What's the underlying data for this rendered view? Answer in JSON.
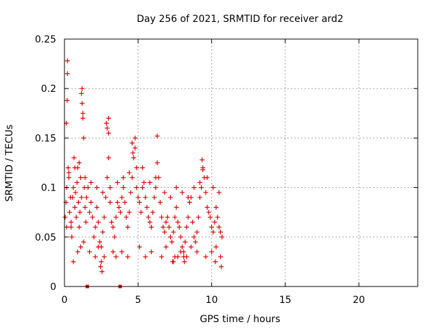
{
  "chart_data": {
    "type": "scatter",
    "title": "Day 256 of 2021, SRMTID for receiver ard2",
    "xlabel": "GPS time / hours",
    "ylabel": "SRMTID / TECUs",
    "xlim": [
      0,
      24
    ],
    "ylim": [
      0,
      0.25
    ],
    "xticks": [
      0,
      5,
      10,
      15,
      20
    ],
    "xtick_labels": [
      "0",
      "5",
      "10",
      "15",
      "20"
    ],
    "yticks": [
      0,
      0.05,
      0.1,
      0.15,
      0.2,
      0.25
    ],
    "ytick_labels": [
      "0",
      "0.05",
      "0.1",
      "0.15",
      "0.2",
      "0.25"
    ],
    "grid": true,
    "marker": "+",
    "color": "#e00000",
    "data_gaps_at_zero": [
      1.55,
      3.78
    ],
    "series": [
      {
        "name": "SRMTID",
        "x": [
          0.05,
          0.1,
          0.15,
          0.15,
          0.2,
          0.2,
          0.25,
          0.3,
          0.35,
          0.4,
          0.45,
          0.5,
          0.55,
          0.6,
          0.65,
          0.7,
          0.75,
          0.8,
          0.85,
          0.9,
          0.95,
          1.0,
          1.05,
          1.1,
          1.15,
          1.2,
          1.25,
          1.3,
          1.35,
          1.4,
          1.45,
          1.5,
          1.6,
          1.7,
          1.8,
          1.9,
          2.0,
          2.1,
          2.2,
          2.3,
          2.4,
          2.5,
          2.6,
          2.7,
          2.8,
          2.9,
          3.0,
          3.0,
          3.0,
          3.1,
          3.2,
          3.3,
          3.4,
          3.5,
          3.6,
          3.7,
          3.8,
          3.9,
          4.0,
          4.1,
          4.2,
          4.3,
          4.4,
          4.5,
          4.6,
          4.7,
          4.8,
          4.8,
          4.9,
          5.0,
          5.1,
          5.2,
          5.3,
          5.4,
          5.5,
          5.6,
          5.7,
          5.8,
          5.9,
          6.0,
          6.1,
          6.2,
          6.3,
          6.4,
          6.5,
          6.6,
          6.7,
          6.8,
          6.9,
          7.0,
          7.1,
          7.2,
          7.3,
          7.4,
          7.5,
          7.6,
          7.7,
          7.8,
          7.9,
          8.0,
          8.1,
          8.2,
          8.3,
          8.4,
          8.5,
          8.6,
          8.7,
          8.8,
          8.9,
          9.0,
          9.1,
          9.2,
          9.3,
          9.4,
          9.5,
          9.6,
          9.7,
          9.8,
          9.9,
          10.0,
          10.1,
          10.2,
          10.3,
          10.4,
          10.5,
          10.6,
          10.7,
          1.15,
          1.2,
          1.25,
          0.12,
          0.18,
          2.85,
          2.9,
          4.6,
          4.65,
          6.3,
          9.35,
          9.4,
          0.6,
          0.9,
          1.1,
          1.3,
          1.7,
          2.1,
          2.3,
          2.5,
          2.7,
          3.3,
          3.5,
          3.9,
          4.3,
          5.1,
          5.5,
          5.9,
          6.6,
          6.9,
          7.4,
          7.7,
          7.9,
          8.3,
          8.6,
          9.0,
          9.6,
          10.0,
          10.3,
          10.6,
          0.3,
          0.7,
          1.0,
          1.4,
          1.8,
          2.2,
          2.6,
          3.1,
          3.6,
          4.0,
          4.4,
          4.9,
          5.3,
          5.8,
          6.2,
          6.8,
          7.2,
          7.6,
          8.0,
          8.4,
          8.8,
          9.2,
          9.7,
          10.1,
          10.5,
          0.45,
          2.45,
          2.55,
          7.35,
          7.5,
          8.1,
          8.15,
          10.25,
          10.65
        ],
        "y": [
          0.07,
          0.085,
          0.06,
          0.1,
          0.228,
          0.215,
          0.12,
          0.11,
          0.075,
          0.09,
          0.065,
          0.05,
          0.09,
          0.1,
          0.13,
          0.08,
          0.095,
          0.07,
          0.105,
          0.12,
          0.085,
          0.06,
          0.075,
          0.11,
          0.09,
          0.2,
          0.175,
          0.15,
          0.1,
          0.08,
          0.065,
          0.09,
          0.1,
          0.075,
          0.085,
          0.07,
          0.05,
          0.06,
          0.08,
          0.065,
          0.045,
          0.04,
          0.055,
          0.07,
          0.09,
          0.11,
          0.17,
          0.155,
          0.13,
          0.085,
          0.065,
          0.06,
          0.05,
          0.07,
          0.085,
          0.08,
          0.075,
          0.09,
          0.1,
          0.085,
          0.07,
          0.06,
          0.075,
          0.095,
          0.11,
          0.13,
          0.15,
          0.14,
          0.1,
          0.09,
          0.085,
          0.075,
          0.12,
          0.105,
          0.09,
          0.08,
          0.07,
          0.065,
          0.06,
          0.075,
          0.09,
          0.1,
          0.125,
          0.11,
          0.085,
          0.07,
          0.06,
          0.055,
          0.065,
          0.07,
          0.06,
          0.05,
          0.045,
          0.055,
          0.07,
          0.08,
          0.065,
          0.06,
          0.05,
          0.04,
          0.035,
          0.045,
          0.06,
          0.07,
          0.085,
          0.09,
          0.065,
          0.05,
          0.045,
          0.055,
          0.07,
          0.09,
          0.1,
          0.12,
          0.11,
          0.095,
          0.08,
          0.075,
          0.07,
          0.06,
          0.055,
          0.065,
          0.08,
          0.07,
          0.06,
          0.055,
          0.05,
          0.195,
          0.185,
          0.17,
          0.165,
          0.188,
          0.165,
          0.16,
          0.145,
          0.135,
          0.152,
          0.128,
          0.118,
          0.025,
          0.035,
          0.04,
          0.045,
          0.035,
          0.03,
          0.04,
          0.025,
          0.03,
          0.035,
          0.03,
          0.035,
          0.03,
          0.04,
          0.03,
          0.035,
          0.03,
          0.04,
          0.025,
          0.03,
          0.035,
          0.03,
          0.04,
          0.035,
          0.03,
          0.035,
          0.04,
          0.03,
          0.115,
          0.12,
          0.125,
          0.11,
          0.105,
          0.1,
          0.095,
          0.1,
          0.105,
          0.11,
          0.115,
          0.12,
          0.1,
          0.105,
          0.11,
          0.095,
          0.09,
          0.1,
          0.095,
          0.09,
          0.1,
          0.105,
          0.11,
          0.1,
          0.095,
          0.06,
          0.02,
          0.015,
          0.025,
          0.03,
          0.03,
          0.025,
          0.025,
          0.02
        ]
      }
    ]
  }
}
